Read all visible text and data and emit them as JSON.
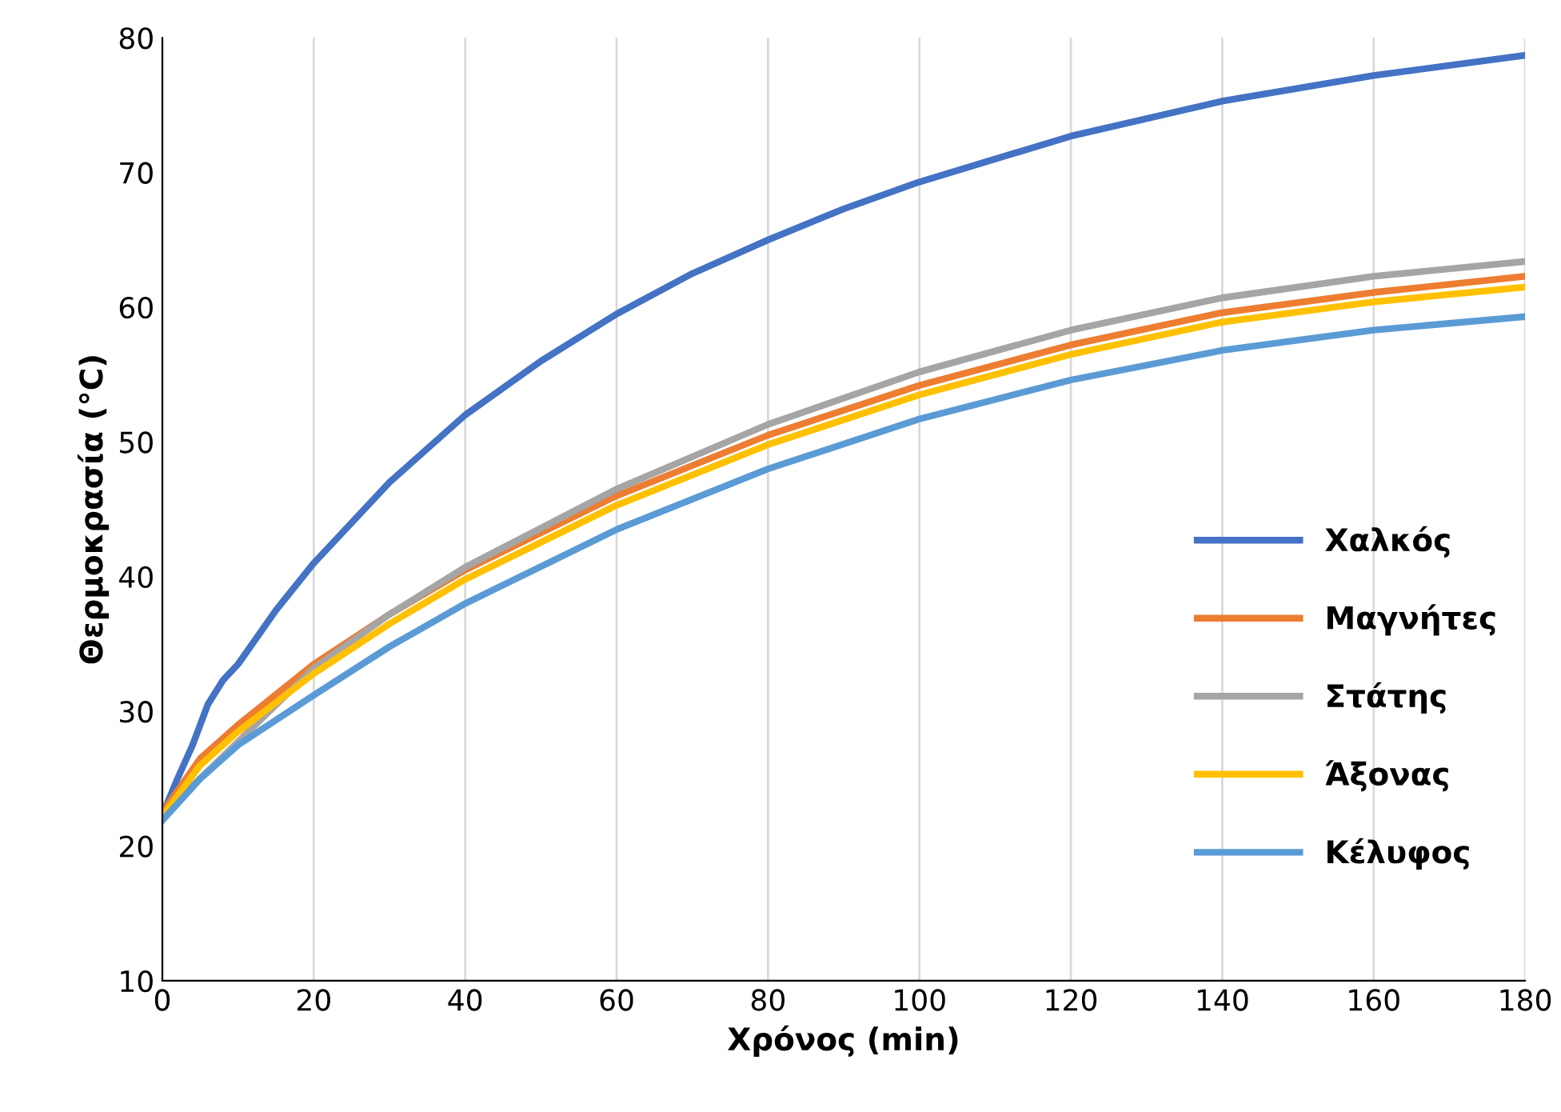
{
  "chart_data": {
    "type": "line",
    "xlabel": "Χρόνος (min)",
    "ylabel": "Θερμοκρασία (°C)",
    "xlim": [
      0,
      180
    ],
    "xticks": [
      0,
      20,
      40,
      60,
      80,
      100,
      120,
      140,
      160,
      180
    ],
    "ylim": [
      10,
      80
    ],
    "yticks": [
      10,
      20,
      30,
      40,
      50,
      60,
      70,
      80
    ],
    "grid": "x",
    "legend": "right",
    "marker": "none",
    "line_style": "solid",
    "series": [
      {
        "name": "Χαλκός",
        "color": "#4472c4",
        "x": [
          0,
          2,
          4,
          6,
          8,
          10,
          15,
          20,
          30,
          40,
          50,
          60,
          70,
          80,
          90,
          100,
          120,
          140,
          160,
          180
        ],
        "values": [
          22.3,
          25,
          27.5,
          30.5,
          32.3,
          33.5,
          37.5,
          41,
          47,
          52,
          56,
          59.5,
          62.5,
          65,
          67.3,
          69.3,
          72.7,
          75.3,
          77.2,
          78.7
        ]
      },
      {
        "name": "Μαγνήτες",
        "color": "#ed7d31",
        "x": [
          0,
          5,
          10,
          20,
          30,
          40,
          60,
          80,
          100,
          120,
          140,
          160,
          180
        ],
        "values": [
          22.5,
          26.5,
          29,
          33.5,
          37.2,
          40.5,
          46,
          50.5,
          54.2,
          57.2,
          59.6,
          61.1,
          62.3
        ]
      },
      {
        "name": "Στάτης",
        "color": "#a5a5a5",
        "x": [
          0,
          20,
          30,
          40,
          60,
          80,
          100,
          120,
          140,
          160,
          180
        ],
        "values": [
          22.3,
          33.2,
          37.2,
          40.7,
          46.5,
          51.3,
          55.2,
          58.3,
          60.7,
          62.3,
          63.4
        ]
      },
      {
        "name": "Άξονας",
        "color": "#ffc000",
        "x": [
          0,
          5,
          10,
          20,
          30,
          40,
          60,
          80,
          100,
          120,
          140,
          160,
          180
        ],
        "values": [
          22.2,
          26,
          28.5,
          32.8,
          36.5,
          39.8,
          45.3,
          49.8,
          53.5,
          56.5,
          58.9,
          60.4,
          61.5
        ]
      },
      {
        "name": "Κέλυφος",
        "color": "#5b9bd5",
        "x": [
          0,
          5,
          10,
          20,
          30,
          40,
          60,
          80,
          100,
          120,
          140,
          160,
          180
        ],
        "values": [
          21.9,
          25,
          27.5,
          31.2,
          34.8,
          38,
          43.5,
          48,
          51.7,
          54.6,
          56.8,
          58.3,
          59.3
        ]
      }
    ]
  }
}
